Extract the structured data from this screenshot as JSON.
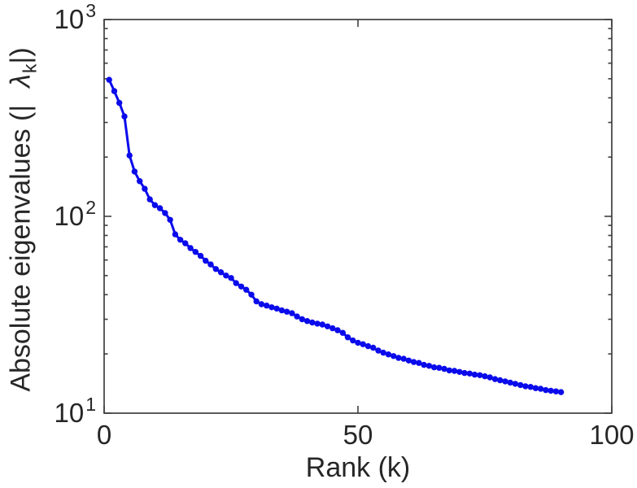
{
  "figure": {
    "background": "#ffffff",
    "axis_color": "#3f3f3f",
    "text_color": "#262626"
  },
  "chart_data": {
    "type": "line",
    "title": "",
    "xlabel": "Rank (k)",
    "ylabel": "Absolute eigenvalues (| λk|)",
    "ylabel_parts": {
      "prefix": "Absolute eigenvalues (|",
      "lambda": "λ",
      "sub": "k",
      "suffix": "|)"
    },
    "xlim": [
      0,
      100
    ],
    "ylim": [
      10,
      1000
    ],
    "xscale": "linear",
    "yscale": "log",
    "grid": false,
    "legend": null,
    "x_ticks": [
      0,
      50,
      100
    ],
    "x_tick_labels": [
      "0",
      "50",
      "100"
    ],
    "y_ticks": [
      10,
      100,
      1000
    ],
    "y_tick_labels": [
      {
        "base": "10",
        "exp": "1"
      },
      {
        "base": "10",
        "exp": "2"
      },
      {
        "base": "10",
        "exp": "3"
      }
    ],
    "series": [
      {
        "name": "absolute-eigenvalues",
        "color": "#0a0aeb",
        "marker": "dot",
        "x": [
          1,
          2,
          3,
          4,
          5,
          6,
          7,
          8,
          9,
          10,
          11,
          12,
          13,
          14,
          15,
          16,
          17,
          18,
          19,
          20,
          21,
          22,
          23,
          24,
          25,
          26,
          27,
          28,
          29,
          30,
          31,
          32,
          33,
          34,
          35,
          36,
          37,
          38,
          39,
          40,
          41,
          42,
          43,
          44,
          45,
          46,
          47,
          48,
          49,
          50,
          51,
          52,
          53,
          54,
          55,
          56,
          57,
          58,
          59,
          60,
          61,
          62,
          63,
          64,
          65,
          66,
          67,
          68,
          69,
          70,
          71,
          72,
          73,
          74,
          75,
          76,
          77,
          78,
          79,
          80,
          81,
          82,
          83,
          84,
          85,
          86,
          87,
          88,
          89,
          90
        ],
        "y": [
          494,
          433,
          377,
          322,
          204,
          169,
          151,
          138,
          122,
          114,
          110,
          104,
          96,
          81,
          76,
          73,
          69,
          66,
          63,
          59.5,
          57,
          54,
          52,
          50,
          48.6,
          45.8,
          44,
          42.4,
          40,
          37,
          35.8,
          35.2,
          34.5,
          34,
          33.3,
          32.8,
          32.2,
          31,
          30,
          29.4,
          28.9,
          28.5,
          28.2,
          27.6,
          27,
          26.4,
          25.6,
          24.3,
          23.4,
          22.8,
          22.4,
          21.9,
          21.5,
          20.8,
          20.3,
          19.9,
          19.5,
          19.1,
          18.9,
          18.5,
          18.2,
          18,
          17.6,
          17.4,
          17.1,
          17,
          16.8,
          16.5,
          16.4,
          16.2,
          16,
          15.9,
          15.7,
          15.6,
          15.4,
          15.2,
          14.9,
          14.7,
          14.5,
          14.3,
          14.1,
          13.9,
          13.7,
          13.6,
          13.4,
          13.3,
          13.1,
          13,
          12.9,
          12.8
        ]
      }
    ]
  }
}
